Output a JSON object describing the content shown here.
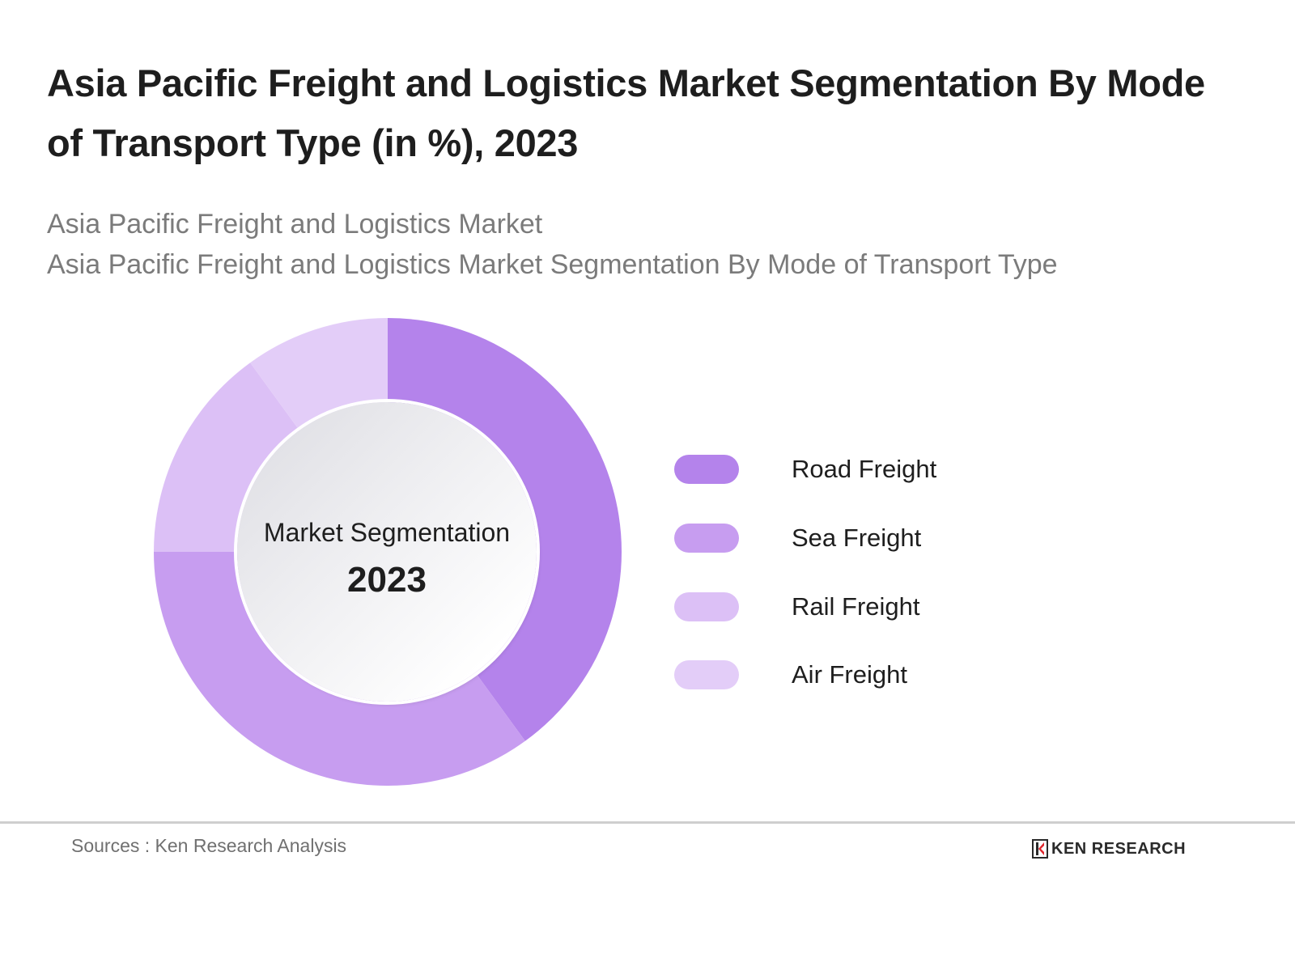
{
  "header": {
    "title": "Asia Pacific Freight and Logistics Market Segmentation By Mode of Transport Type (in %), 2023",
    "subtitle_line1": "Asia Pacific Freight and Logistics Market",
    "subtitle_line2": "Asia Pacific Freight and Logistics Market Segmentation By Mode of Transport Type"
  },
  "center": {
    "label": "Market Segmentation",
    "year": "2023"
  },
  "footer": {
    "source": "Sources : Ken Research Analysis",
    "logo_text": "KEN RESEARCH",
    "logo_icon": "ken-research-logo-icon"
  },
  "colors": {
    "road": "#b483eb",
    "sea": "#c79df0",
    "rail": "#dcc0f6",
    "air": "#e3cdf8",
    "logo_red": "#e0252b"
  },
  "chart_data": {
    "type": "pie",
    "variant": "donut",
    "title": "Asia Pacific Freight and Logistics Market Segmentation By Mode of Transport Type (in %), 2023",
    "subtitle": "Asia Pacific Freight and Logistics Market / Asia Pacific Freight and Logistics Market Segmentation By Mode of Transport Type",
    "categories": [
      "Road Freight",
      "Sea Freight",
      "Rail Freight",
      "Air Freight"
    ],
    "values": [
      40,
      35,
      15,
      10
    ],
    "unit": "%",
    "center_text": [
      "Market Segmentation",
      "2023"
    ],
    "legend_position": "right",
    "start_angle": "top, clockwise"
  },
  "legend": [
    {
      "label": "Road Freight",
      "color": "#b483eb"
    },
    {
      "label": "Sea Freight",
      "color": "#c79df0"
    },
    {
      "label": "Rail Freight",
      "color": "#dcc0f6"
    },
    {
      "label": "Air Freight",
      "color": "#e3cdf8"
    }
  ]
}
